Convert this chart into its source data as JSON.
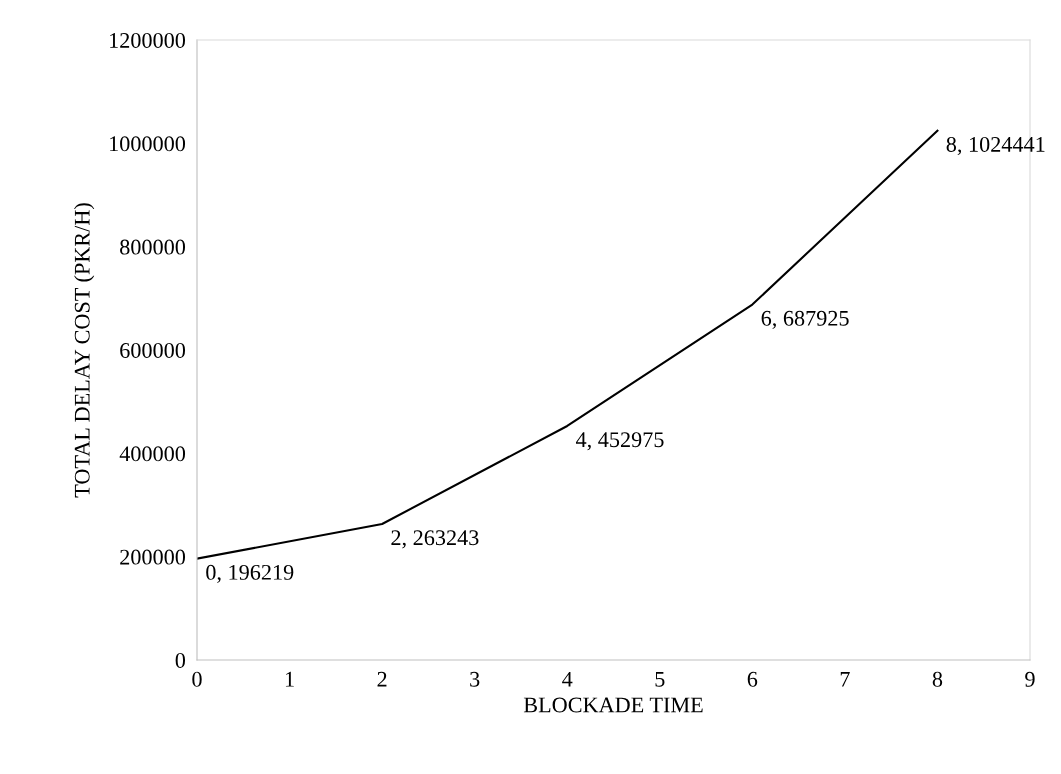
{
  "chart_data": {
    "type": "line",
    "xlabel": "BLOCKADE TIME",
    "ylabel": "TOTAL DELAY COST (PKR/H)",
    "x": [
      0,
      2,
      4,
      6,
      8
    ],
    "series": [
      {
        "color": "#000000",
        "values": [
          196219,
          263243,
          452975,
          687925,
          1024441
        ],
        "value_labels": [
          "0, 196219",
          "2, 263243",
          "4, 452975",
          "6, 687925",
          "8, 1024441"
        ]
      }
    ],
    "xlim": [
      0,
      9
    ],
    "xticks": [
      0,
      1,
      2,
      3,
      4,
      5,
      6,
      7,
      8,
      9
    ],
    "ylim": [
      0,
      1200000
    ],
    "yticks": [
      0,
      200000,
      400000,
      600000,
      800000,
      1000000,
      1200000
    ],
    "grid": false,
    "marker": "none",
    "line_style": "solid"
  }
}
